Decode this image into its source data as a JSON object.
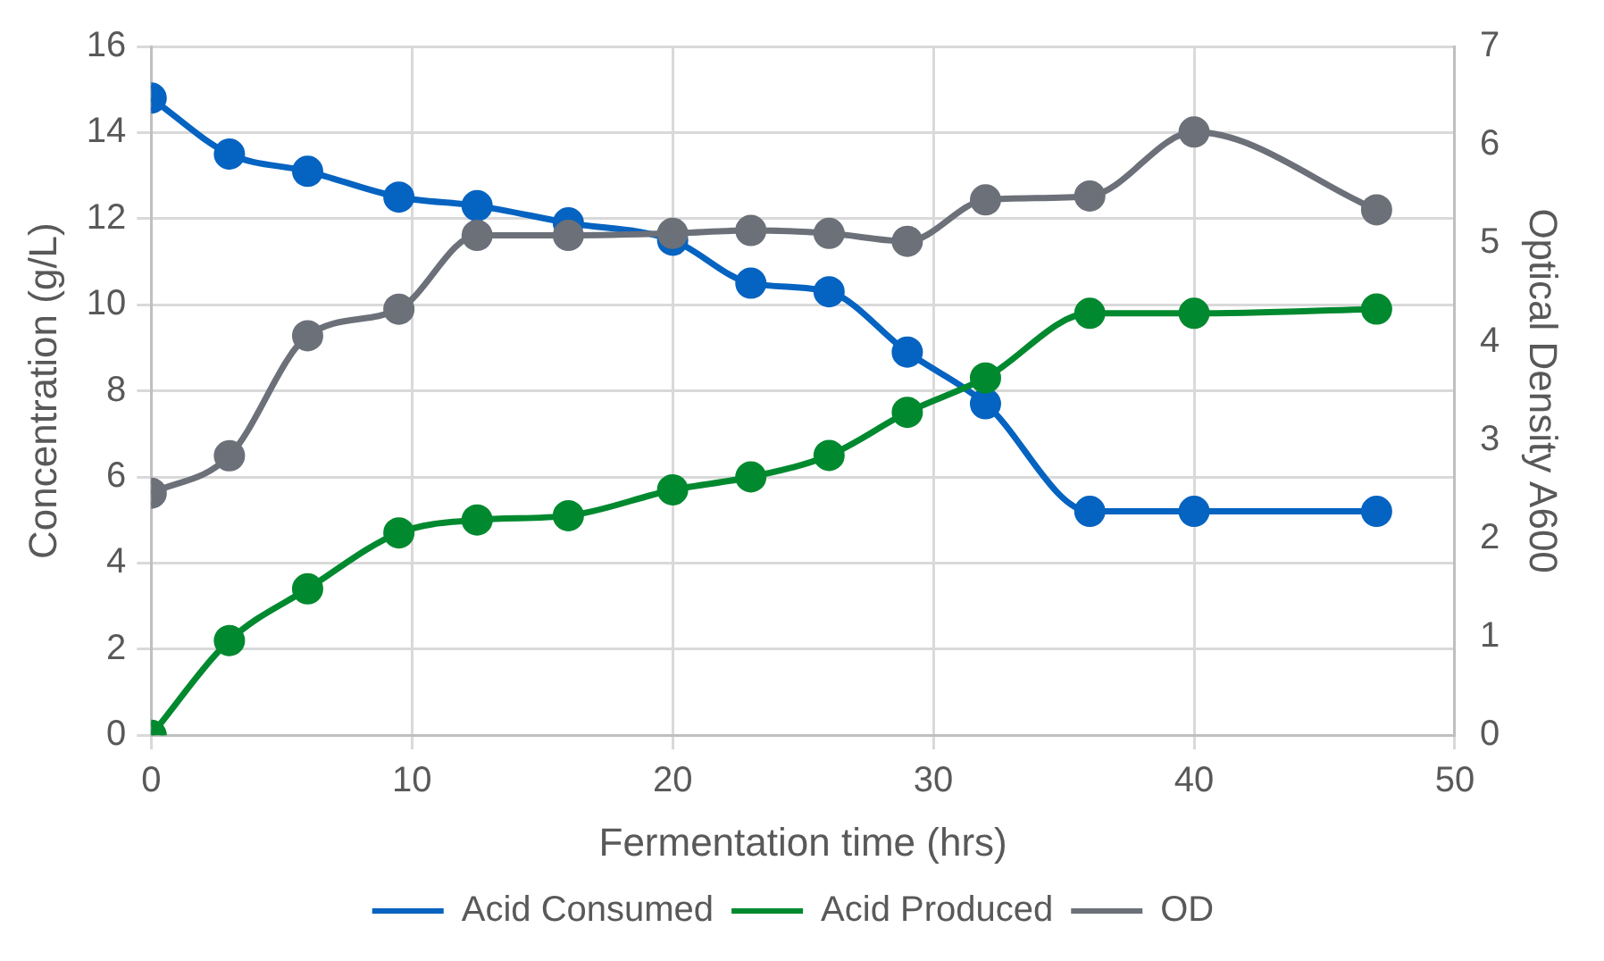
{
  "chart_data": {
    "type": "line",
    "xlabel": "Fermentation time (hrs)",
    "ylabel": "Concentration (g/L)",
    "y2label": "Optical Density A600",
    "xlim": [
      0,
      50
    ],
    "xticks": [
      0,
      10,
      20,
      30,
      40,
      50
    ],
    "ylim": [
      0,
      16
    ],
    "yticks": [
      0,
      2,
      4,
      6,
      8,
      10,
      12,
      14,
      16
    ],
    "y2lim": [
      0,
      7
    ],
    "y2ticks": [
      0,
      1,
      2,
      3,
      4,
      5,
      6,
      7
    ],
    "x": [
      0,
      3,
      6,
      9.5,
      12.5,
      16,
      20,
      23,
      26,
      29,
      32,
      36,
      40,
      47
    ],
    "series": [
      {
        "name": "Acid Consumed",
        "color": "#0563c1",
        "values": [
          14.8,
          13.5,
          13.1,
          12.5,
          12.3,
          11.9,
          11.5,
          10.5,
          10.3,
          8.9,
          7.7,
          5.2,
          5.2,
          5.2
        ]
      },
      {
        "name": "Acid Produced",
        "color": "#00892f",
        "values": [
          0,
          2.2,
          3.4,
          4.7,
          5.0,
          5.1,
          5.7,
          6.0,
          6.5,
          7.5,
          8.3,
          9.8,
          9.8,
          9.9
        ]
      },
      {
        "name": "OD",
        "color": "#6b7079",
        "axis": "y2",
        "values": [
          2.46,
          2.84,
          4.06,
          4.33,
          5.08,
          5.08,
          5.1,
          5.13,
          5.1,
          5.02,
          5.44,
          5.48,
          6.13,
          5.34
        ]
      }
    ],
    "grid": true,
    "legend": "bottom",
    "marker": "circle",
    "line_style": "solid"
  }
}
